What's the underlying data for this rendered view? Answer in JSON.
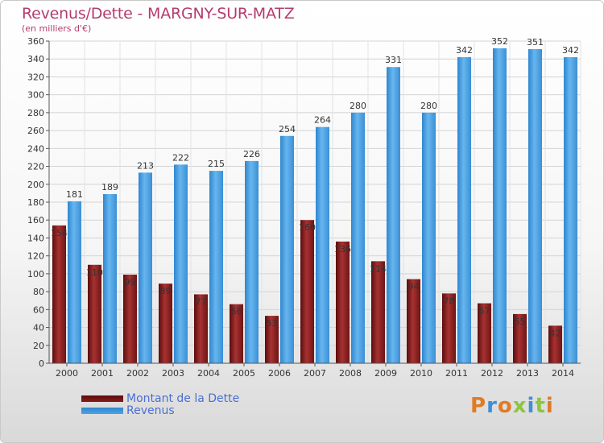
{
  "chart_data": {
    "type": "bar",
    "title": "Revenus/Dette - MARGNY-SUR-MATZ",
    "subtitle": "(en milliers d'€)",
    "xlabel": "",
    "ylabel": "",
    "ylim": [
      0,
      360
    ],
    "ytick_step": 20,
    "grid": true,
    "legend_position": "bottom-left",
    "categories": [
      "2000",
      "2001",
      "2002",
      "2003",
      "2004",
      "2005",
      "2006",
      "2007",
      "2008",
      "2009",
      "2010",
      "2011",
      "2012",
      "2013",
      "2014"
    ],
    "series": [
      {
        "name": "Montant de la Dette",
        "color": "#8b1a1a",
        "values": [
          154,
          110,
          99,
          89,
          77,
          66,
          53,
          160,
          136,
          114,
          94,
          78,
          67,
          55,
          42
        ]
      },
      {
        "name": "Revenus",
        "color": "#4da3e6",
        "values": [
          181,
          189,
          213,
          222,
          215,
          226,
          254,
          264,
          280,
          331,
          280,
          342,
          352,
          351,
          342
        ]
      }
    ]
  },
  "brand": {
    "letters": [
      "P",
      "r",
      "o",
      "x",
      "i",
      "t",
      "i"
    ],
    "colors": [
      "#e07b24",
      "#3f8fd4",
      "#e07b24",
      "#8cc63f",
      "#3f8fd4",
      "#8cc63f",
      "#e07b24"
    ]
  }
}
